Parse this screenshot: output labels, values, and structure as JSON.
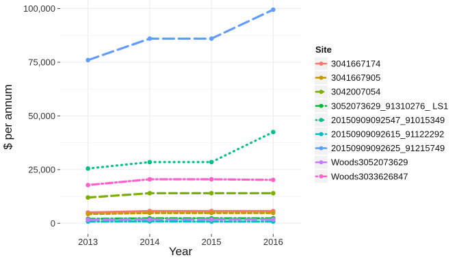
{
  "chart_data": {
    "type": "line",
    "xlabel": "Year",
    "ylabel": "$ per annum",
    "x": [
      2013,
      2014,
      2015,
      2016
    ],
    "xlim": [
      2012.55,
      2016.45
    ],
    "ylim": [
      -5000,
      104000
    ],
    "yticks": [
      0,
      25000,
      50000,
      75000,
      100000
    ],
    "ytick_labels": [
      "0",
      "25,000",
      "50,000",
      "75,000",
      "100,000"
    ],
    "grid": true,
    "legend": {
      "title": "Site",
      "position": "right"
    },
    "series": [
      {
        "name": "3041667174",
        "color": "#F8766D",
        "linestyle": "solid",
        "values": [
          5000,
          5700,
          5700,
          5700
        ]
      },
      {
        "name": "3041667905",
        "color": "#C49A00",
        "linestyle": "dashed-short",
        "values": [
          4300,
          4800,
          4800,
          4800
        ]
      },
      {
        "name": "3042007054",
        "color": "#7CAE00",
        "linestyle": "dashed",
        "values": [
          12000,
          14000,
          14000,
          14000
        ]
      },
      {
        "name": "3052073629_91310276_ LS1",
        "color": "#00BA38",
        "linestyle": "dash-dot",
        "values": [
          2000,
          2300,
          2300,
          2300
        ]
      },
      {
        "name": "20150909092547_91015349",
        "color": "#00C08B",
        "linestyle": "dotted",
        "values": [
          25500,
          28500,
          28500,
          42500
        ]
      },
      {
        "name": "20150909092615_91122292",
        "color": "#00BFC4",
        "linestyle": "dash-dot",
        "values": [
          800,
          900,
          800,
          800
        ]
      },
      {
        "name": "20150909092625_91215749",
        "color": "#619CFF",
        "linestyle": "long-dash",
        "values": [
          76000,
          86000,
          86000,
          99500
        ]
      },
      {
        "name": "Woods3052073629",
        "color": "#C77CFF",
        "linestyle": "long-dash",
        "values": [
          1600,
          1800,
          1800,
          1800
        ]
      },
      {
        "name": "Woods3033626847",
        "color": "#FF61CC",
        "linestyle": "dot-dash",
        "values": [
          17800,
          20500,
          20500,
          20200
        ]
      }
    ]
  }
}
